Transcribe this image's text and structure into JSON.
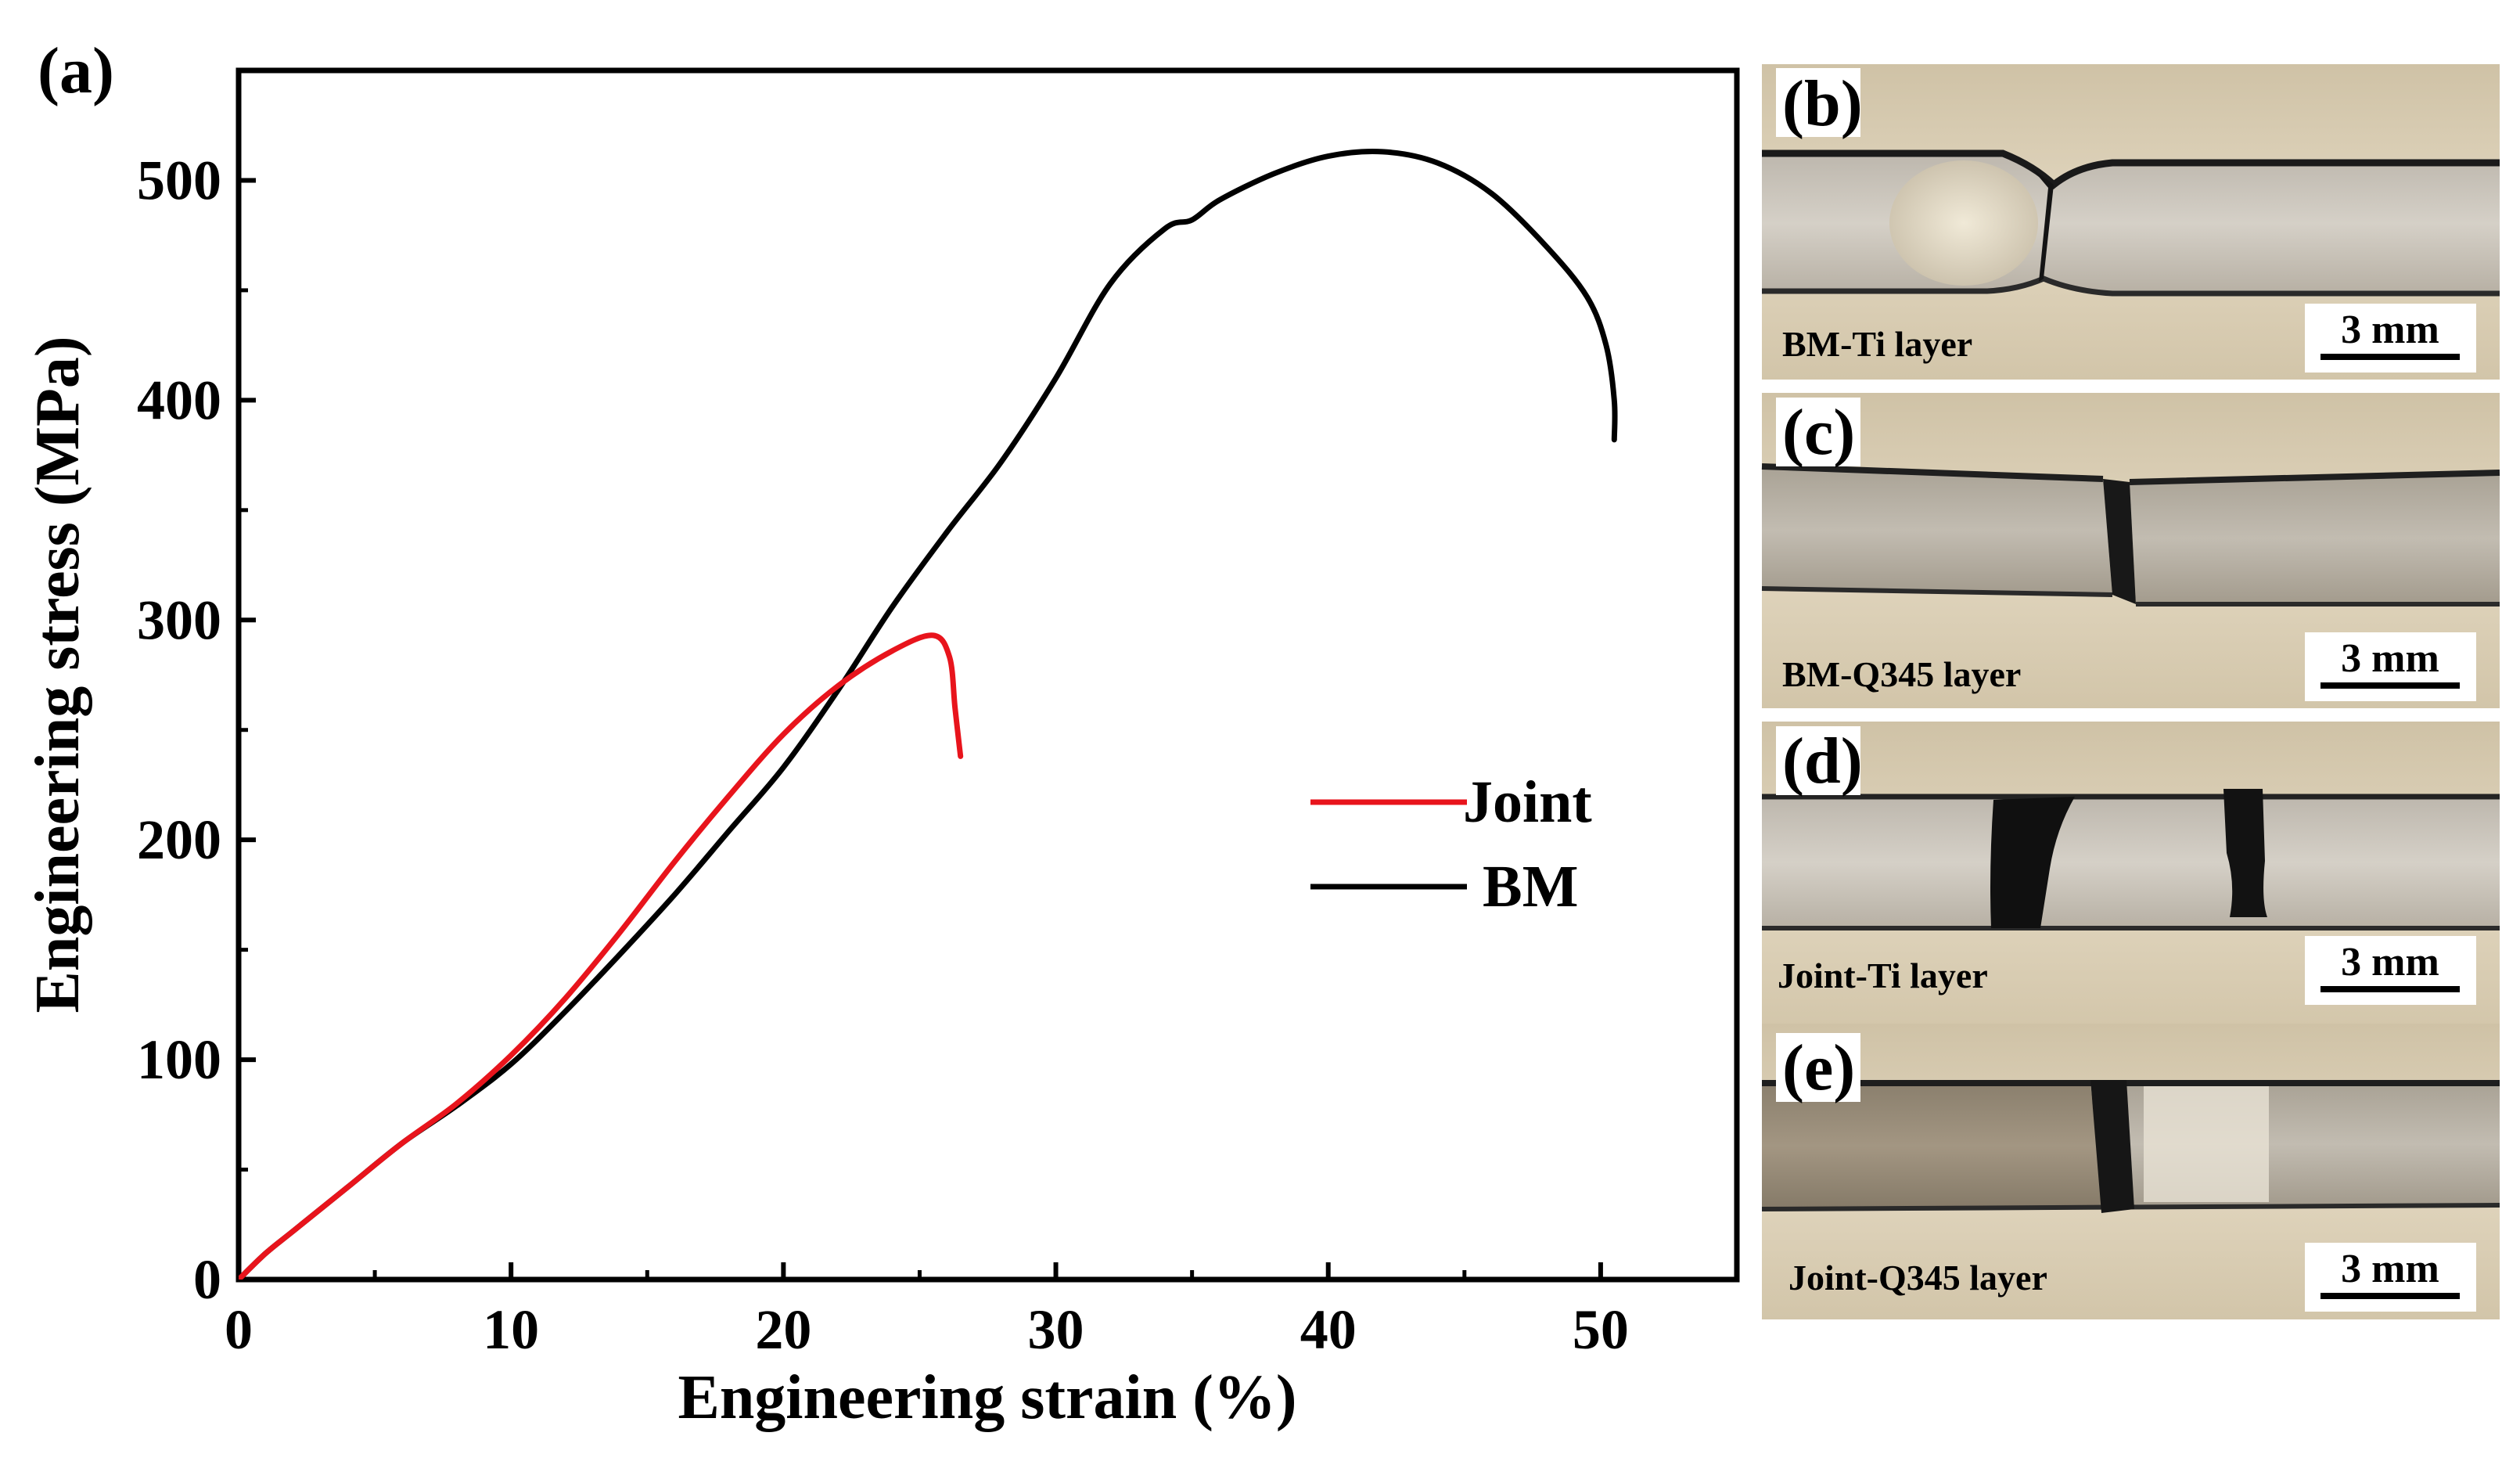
{
  "panel_labels": {
    "a": "(a)",
    "b": "(b)",
    "c": "(c)",
    "d": "(d)",
    "e": "(e)"
  },
  "chart_data": {
    "type": "line",
    "xlabel": "Engineering strain (%)",
    "ylabel": "Engineering stress (MPa)",
    "xlim": [
      0,
      55
    ],
    "ylim": [
      0,
      550
    ],
    "xticks": [
      0,
      10,
      20,
      30,
      40,
      50
    ],
    "yticks": [
      0,
      100,
      200,
      300,
      400,
      500
    ],
    "legend_position": "center-right",
    "series": [
      {
        "name": "Joint",
        "color": "#e8141c",
        "x": [
          0,
          1,
          2,
          4,
          6,
          8,
          10,
          12,
          14,
          16,
          18,
          20,
          22,
          24,
          25.5,
          26.1,
          26.3,
          26.5
        ],
        "y": [
          0,
          12,
          22,
          42,
          62,
          80,
          102,
          128,
          158,
          190,
          220,
          248,
          270,
          286,
          293,
          283,
          260,
          238
        ]
      },
      {
        "name": "BM",
        "color": "#000000",
        "x": [
          0,
          1,
          2,
          4,
          6,
          8,
          10,
          12,
          14,
          16,
          18,
          20,
          22,
          24,
          26,
          28,
          30,
          32,
          34,
          35,
          36,
          38,
          40,
          42,
          44,
          46,
          48,
          49.5,
          50.2,
          50.5,
          50.5
        ],
        "y": [
          0,
          12,
          22,
          42,
          62,
          79,
          98,
          122,
          148,
          175,
          204,
          233,
          268,
          306,
          340,
          372,
          410,
          453,
          478,
          482,
          491,
          503,
          511,
          513,
          508,
          494,
          470,
          447,
          425,
          400,
          382
        ]
      }
    ]
  },
  "photos": [
    {
      "id": "b",
      "caption": "BM-Ti layer",
      "scale": "3 mm"
    },
    {
      "id": "c",
      "caption": "BM-Q345 layer",
      "scale": "3 mm"
    },
    {
      "id": "d",
      "caption": "Joint-Ti layer",
      "scale": "3 mm"
    },
    {
      "id": "e",
      "caption": "Joint-Q345 layer",
      "scale": "3 mm"
    }
  ],
  "colors": {
    "photo_background": "#d9ccb2",
    "metal_light": "#cfc9bf",
    "metal_dark": "#9e9589",
    "crack": "#111111"
  }
}
